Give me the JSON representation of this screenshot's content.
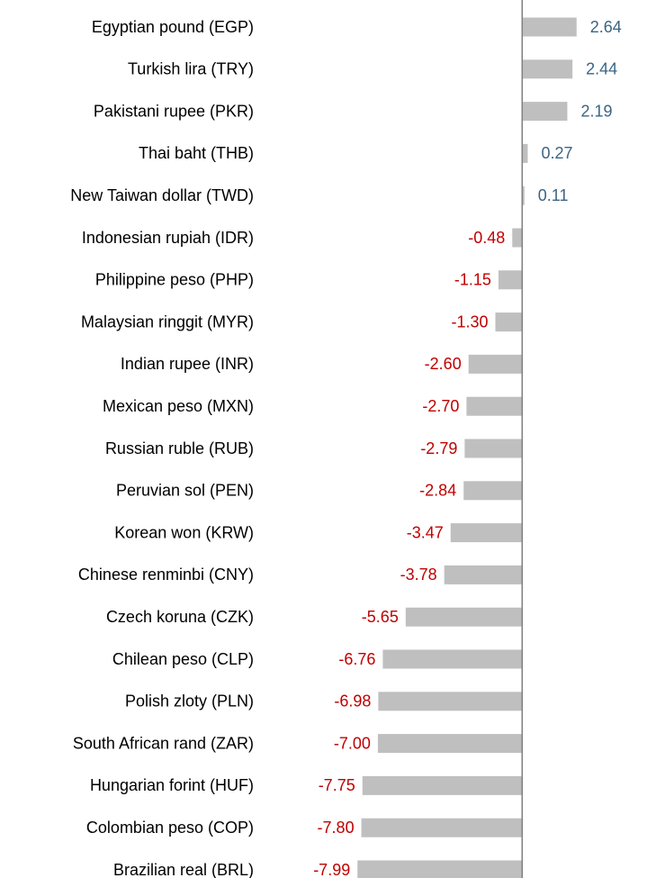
{
  "chart_data": {
    "type": "bar",
    "orientation": "horizontal",
    "categories": [
      "Egyptian pound (EGP)",
      "Turkish lira (TRY)",
      "Pakistani rupee (PKR)",
      "Thai baht (THB)",
      "New Taiwan dollar (TWD)",
      "Indonesian rupiah (IDR)",
      "Philippine peso (PHP)",
      "Malaysian ringgit (MYR)",
      "Indian rupee (INR)",
      "Mexican peso (MXN)",
      "Russian ruble (RUB)",
      "Peruvian sol (PEN)",
      "Korean won (KRW)",
      "Chinese renminbi (CNY)",
      "Czech koruna (CZK)",
      "Chilean peso (CLP)",
      "Polish zloty (PLN)",
      "South African rand (ZAR)",
      "Hungarian forint (HUF)",
      "Colombian peso (COP)",
      "Brazilian real (BRL)"
    ],
    "values": [
      2.64,
      2.44,
      2.19,
      0.27,
      0.11,
      -0.48,
      -1.15,
      -1.3,
      -2.6,
      -2.7,
      -2.79,
      -2.84,
      -3.47,
      -3.78,
      -5.65,
      -6.76,
      -6.98,
      -7.0,
      -7.75,
      -7.8,
      -7.99
    ],
    "value_labels": [
      "2.64",
      "2.44",
      "2.19",
      "0.27",
      "0.11",
      "-0.48",
      "-1.15",
      "-1.30",
      "-2.60",
      "-2.70",
      "-2.79",
      "-2.84",
      "-3.47",
      "-3.78",
      "-5.65",
      "-6.76",
      "-6.98",
      "-7.00",
      "-7.75",
      "-7.80",
      "-7.99"
    ],
    "xlim": [
      -8,
      3
    ],
    "color": "#bfbfbf",
    "positive_label_color": "#3a6585",
    "negative_label_color": "#c00000"
  }
}
